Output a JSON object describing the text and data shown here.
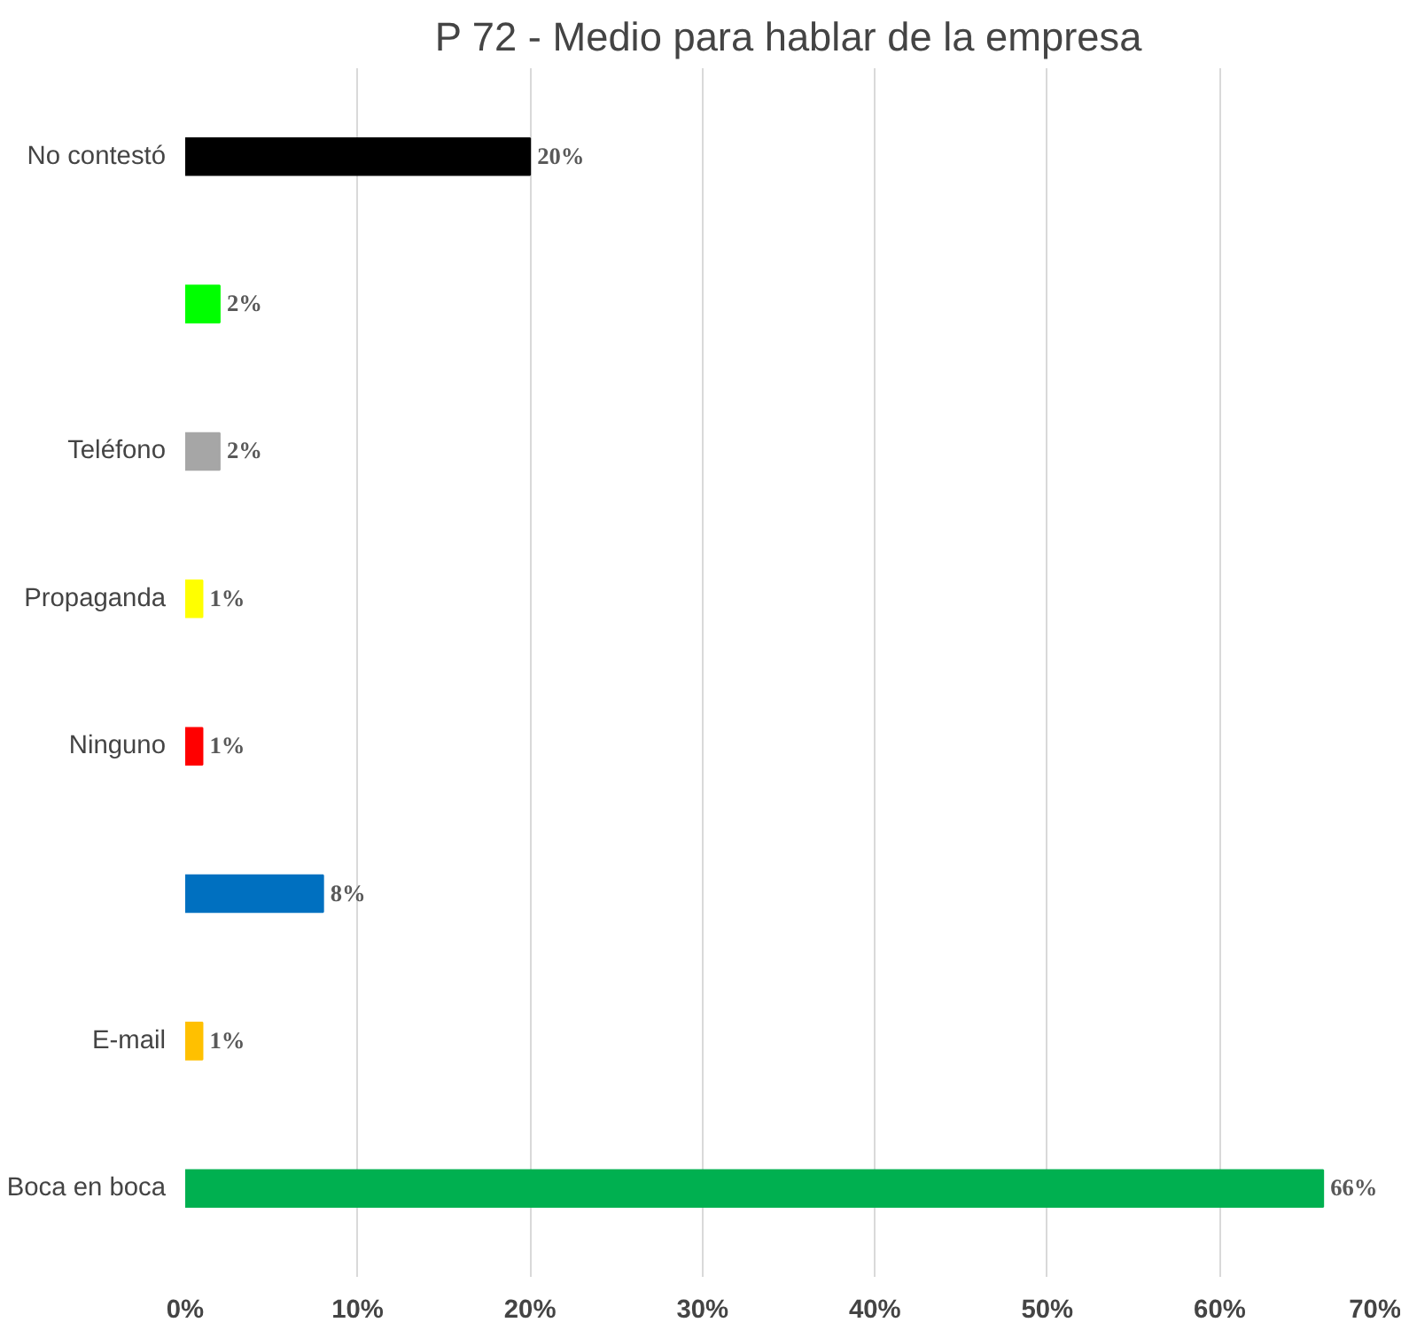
{
  "chart_data": {
    "type": "bar",
    "orientation": "horizontal",
    "title": "P 72 - Medio para hablar de la empresa",
    "categories": [
      "No contestó",
      null,
      "Teléfono",
      "Propaganda",
      "Ninguno",
      null,
      "E-mail",
      "Boca en boca"
    ],
    "values": [
      20,
      2,
      2,
      1,
      1,
      8,
      1,
      66
    ],
    "colors": [
      "#000000",
      "#00ff00",
      "#a6a6a6",
      "#ffff00",
      "#ff0000",
      "#0070c0",
      "#ffc000",
      "#00b050"
    ],
    "value_labels": [
      "20%",
      "2%",
      "2%",
      "1%",
      "1%",
      "8%",
      "1%",
      "66%"
    ],
    "xlim": [
      0,
      70
    ],
    "xticks": [
      {
        "value": 0,
        "label": "0%"
      },
      {
        "value": 10,
        "label": "10%"
      },
      {
        "value": 20,
        "label": "20%"
      },
      {
        "value": 30,
        "label": "30%"
      },
      {
        "value": 40,
        "label": "40%"
      },
      {
        "value": 50,
        "label": "50%"
      },
      {
        "value": 60,
        "label": "60%"
      },
      {
        "value": 70,
        "label": "70%"
      }
    ],
    "grid": "x"
  }
}
